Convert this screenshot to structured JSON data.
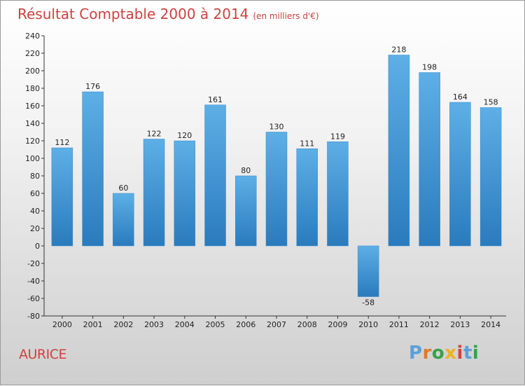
{
  "header": {
    "title": "Résultat Comptable 2000 à 2014",
    "unit": "(en milliers d'€)"
  },
  "footer": {
    "commune": "AURICE",
    "logo_letters": [
      "P",
      "r",
      "o",
      "x",
      "i",
      "t",
      "i"
    ]
  },
  "colors": {
    "title": "#d04040",
    "bar_light": "#5dafe6",
    "bar_dark": "#2a7bbd",
    "logo": [
      "#5aa0d8",
      "#e07a2a",
      "#3ca04a",
      "#f0b020",
      "#d84040",
      "#5aa0d8",
      "#3ca04a"
    ]
  },
  "chart_data": {
    "type": "bar",
    "title": "Résultat Comptable 2000 à 2014",
    "subtitle": "(en milliers d'€)",
    "xlabel": "",
    "ylabel": "",
    "ylim": [
      -80,
      240
    ],
    "ytick_step": 20,
    "grid": false,
    "categories": [
      "2000",
      "2001",
      "2002",
      "2003",
      "2004",
      "2005",
      "2006",
      "2007",
      "2008",
      "2009",
      "2010",
      "2011",
      "2012",
      "2013",
      "2014"
    ],
    "values": [
      112,
      176,
      60,
      122,
      120,
      161,
      80,
      130,
      111,
      119,
      -58,
      218,
      198,
      164,
      158
    ]
  }
}
